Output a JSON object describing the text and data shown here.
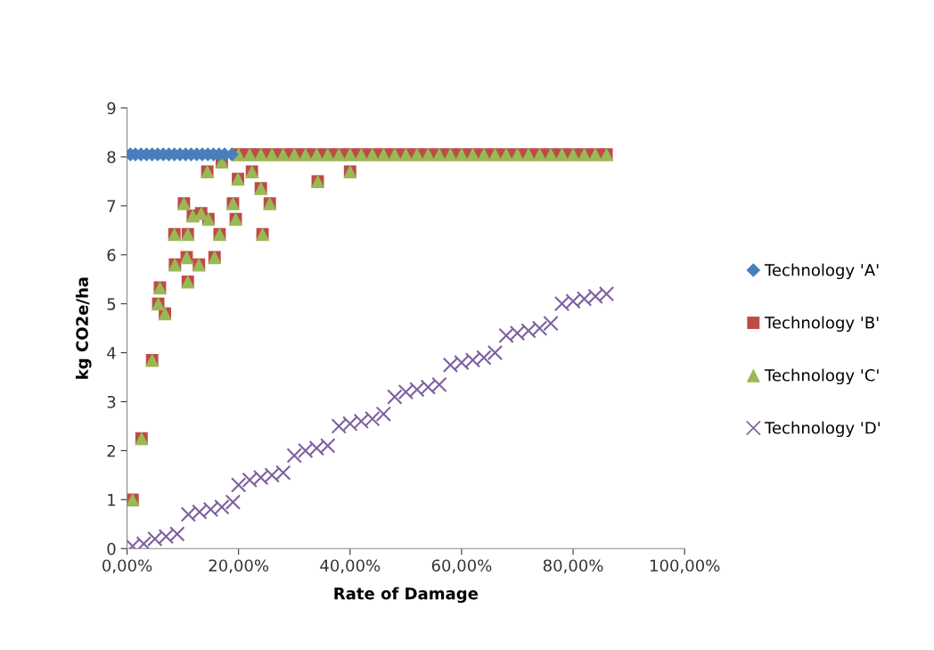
{
  "chart_data": {
    "type": "scatter",
    "xlabel": "Rate of Damage",
    "ylabel": "kg CO2e/ha",
    "xlim": [
      0,
      1
    ],
    "xticks": [
      {
        "value": 0,
        "label": "0,00%"
      },
      {
        "value": 0.2,
        "label": "20,00%"
      },
      {
        "value": 0.4,
        "label": "40,00%"
      },
      {
        "value": 0.6,
        "label": "60,00%"
      },
      {
        "value": 0.8,
        "label": "80,00%"
      },
      {
        "value": 1,
        "label": "100,00%"
      }
    ],
    "ylim": [
      0,
      9
    ],
    "yticks": [
      0,
      1,
      2,
      3,
      4,
      5,
      6,
      7,
      8,
      9
    ],
    "legend": "right",
    "series": [
      {
        "name": "Technology 'A'",
        "color": "#4a7ebb",
        "marker": "diamond",
        "x": [
          0.006,
          0.015,
          0.025,
          0.035,
          0.045,
          0.055,
          0.065,
          0.075,
          0.085,
          0.095,
          0.105,
          0.115,
          0.125,
          0.135,
          0.145,
          0.155,
          0.165,
          0.175,
          0.188
        ],
        "values": [
          8.05,
          8.05,
          8.05,
          8.05,
          8.05,
          8.05,
          8.05,
          8.05,
          8.05,
          8.05,
          8.05,
          8.05,
          8.05,
          8.05,
          8.05,
          8.05,
          8.05,
          8.05,
          8.05
        ]
      },
      {
        "name": "Technology 'B'",
        "color": "#be4b48",
        "marker": "square",
        "x": [
          0.01,
          0.026,
          0.045,
          0.056,
          0.059,
          0.068,
          0.086,
          0.085,
          0.102,
          0.107,
          0.109,
          0.109,
          0.118,
          0.129,
          0.133,
          0.146,
          0.144,
          0.157,
          0.166,
          0.17,
          0.19,
          0.195,
          0.199,
          0.224,
          0.24,
          0.243,
          0.256,
          0.342,
          0.4,
          0.2,
          0.22,
          0.24,
          0.26,
          0.28,
          0.3,
          0.32,
          0.34,
          0.36,
          0.38,
          0.4,
          0.42,
          0.44,
          0.46,
          0.48,
          0.5,
          0.52,
          0.54,
          0.56,
          0.58,
          0.6,
          0.62,
          0.64,
          0.66,
          0.68,
          0.7,
          0.72,
          0.74,
          0.76,
          0.78,
          0.8,
          0.82,
          0.84,
          0.86
        ],
        "values": [
          1.0,
          2.25,
          3.85,
          5.0,
          5.33,
          4.8,
          5.8,
          6.42,
          7.05,
          5.95,
          5.45,
          6.42,
          6.8,
          5.8,
          6.85,
          6.73,
          7.7,
          5.95,
          6.42,
          7.9,
          7.05,
          6.73,
          7.55,
          7.7,
          7.36,
          6.42,
          7.05,
          7.5,
          7.7,
          8.05,
          8.05,
          8.05,
          8.05,
          8.05,
          8.05,
          8.05,
          8.05,
          8.05,
          8.05,
          8.05,
          8.05,
          8.05,
          8.05,
          8.05,
          8.05,
          8.05,
          8.05,
          8.05,
          8.05,
          8.05,
          8.05,
          8.05,
          8.05,
          8.05,
          8.05,
          8.05,
          8.05,
          8.05,
          8.05,
          8.05,
          8.05,
          8.05,
          8.05
        ]
      },
      {
        "name": "Technology 'C'",
        "color": "#98b954",
        "marker": "triangle",
        "x": [
          0.01,
          0.026,
          0.045,
          0.056,
          0.059,
          0.068,
          0.086,
          0.085,
          0.102,
          0.107,
          0.109,
          0.109,
          0.118,
          0.129,
          0.133,
          0.146,
          0.144,
          0.157,
          0.166,
          0.17,
          0.19,
          0.195,
          0.199,
          0.224,
          0.24,
          0.243,
          0.256,
          0.342,
          0.4,
          0.2,
          0.22,
          0.24,
          0.26,
          0.28,
          0.3,
          0.32,
          0.34,
          0.36,
          0.38,
          0.4,
          0.42,
          0.44,
          0.46,
          0.48,
          0.5,
          0.52,
          0.54,
          0.56,
          0.58,
          0.6,
          0.62,
          0.64,
          0.66,
          0.68,
          0.7,
          0.72,
          0.74,
          0.76,
          0.78,
          0.8,
          0.82,
          0.84,
          0.86
        ],
        "values": [
          1.0,
          2.25,
          3.85,
          5.0,
          5.33,
          4.8,
          5.8,
          6.42,
          7.05,
          5.95,
          5.45,
          6.42,
          6.8,
          5.8,
          6.85,
          6.73,
          7.7,
          5.95,
          6.42,
          7.9,
          7.05,
          6.73,
          7.55,
          7.7,
          7.36,
          6.42,
          7.05,
          7.5,
          7.7,
          8.05,
          8.05,
          8.05,
          8.05,
          8.05,
          8.05,
          8.05,
          8.05,
          8.05,
          8.05,
          8.05,
          8.05,
          8.05,
          8.05,
          8.05,
          8.05,
          8.05,
          8.05,
          8.05,
          8.05,
          8.05,
          8.05,
          8.05,
          8.05,
          8.05,
          8.05,
          8.05,
          8.05,
          8.05,
          8.05,
          8.05,
          8.05,
          8.05,
          8.05
        ]
      },
      {
        "name": "Technology 'D'",
        "color": "#7d60a0",
        "marker": "cross",
        "x": [
          0.01,
          0.03,
          0.05,
          0.07,
          0.09,
          0.11,
          0.13,
          0.15,
          0.17,
          0.19,
          0.2,
          0.22,
          0.24,
          0.26,
          0.28,
          0.3,
          0.32,
          0.34,
          0.36,
          0.38,
          0.4,
          0.42,
          0.44,
          0.46,
          0.48,
          0.5,
          0.52,
          0.54,
          0.56,
          0.58,
          0.6,
          0.62,
          0.64,
          0.66,
          0.68,
          0.7,
          0.72,
          0.74,
          0.76,
          0.78,
          0.8,
          0.82,
          0.84,
          0.86
        ],
        "values": [
          0.05,
          0.1,
          0.2,
          0.25,
          0.3,
          0.7,
          0.75,
          0.8,
          0.85,
          0.95,
          1.3,
          1.4,
          1.45,
          1.5,
          1.55,
          1.9,
          2.0,
          2.05,
          2.1,
          2.5,
          2.55,
          2.6,
          2.65,
          2.75,
          3.1,
          3.2,
          3.25,
          3.3,
          3.35,
          3.75,
          3.8,
          3.85,
          3.9,
          4.0,
          4.35,
          4.4,
          4.45,
          4.5,
          4.6,
          5.0,
          5.05,
          5.1,
          5.15,
          5.2
        ]
      }
    ]
  }
}
